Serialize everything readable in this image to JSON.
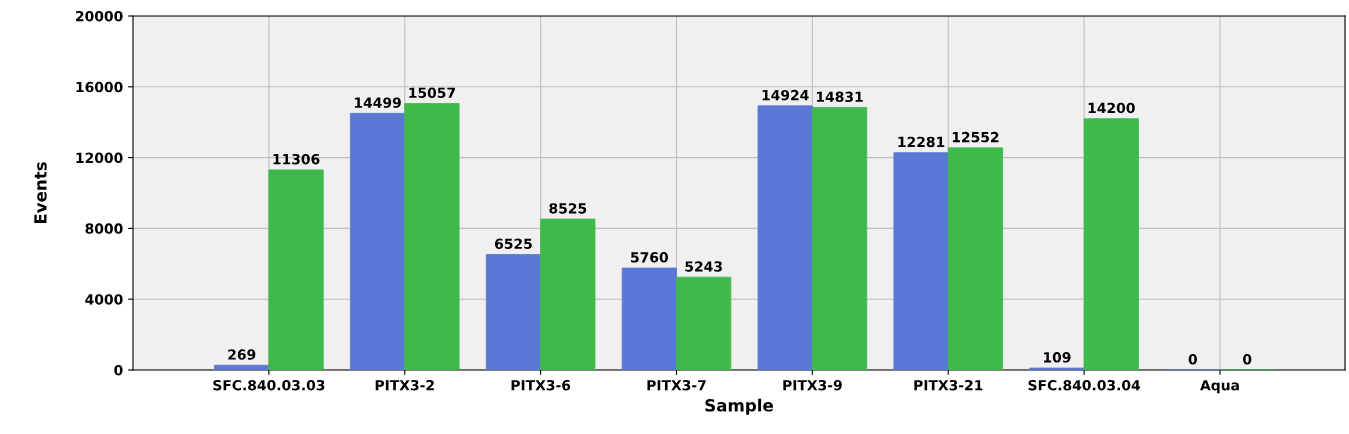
{
  "chart_data": {
    "type": "bar",
    "xlabel": "Sample",
    "ylabel": "Events",
    "categories": [
      "SFC.840.03.03",
      "PITX3-2",
      "PITX3-6",
      "PITX3-7",
      "PITX3-9",
      "PITX3-21",
      "SFC.840.03.04",
      "Aqua"
    ],
    "series": [
      {
        "color": "#5b78d6",
        "values": [
          269,
          14499,
          6525,
          5760,
          14924,
          12281,
          109,
          0
        ]
      },
      {
        "color": "#3fb94c",
        "values": [
          11306,
          15057,
          8525,
          5243,
          14831,
          12552,
          14200,
          0
        ]
      }
    ],
    "ylim": [
      0,
      20000
    ],
    "yticks": [
      0,
      4000,
      8000,
      12000,
      16000,
      20000
    ],
    "grid": true,
    "data_labels": true
  }
}
